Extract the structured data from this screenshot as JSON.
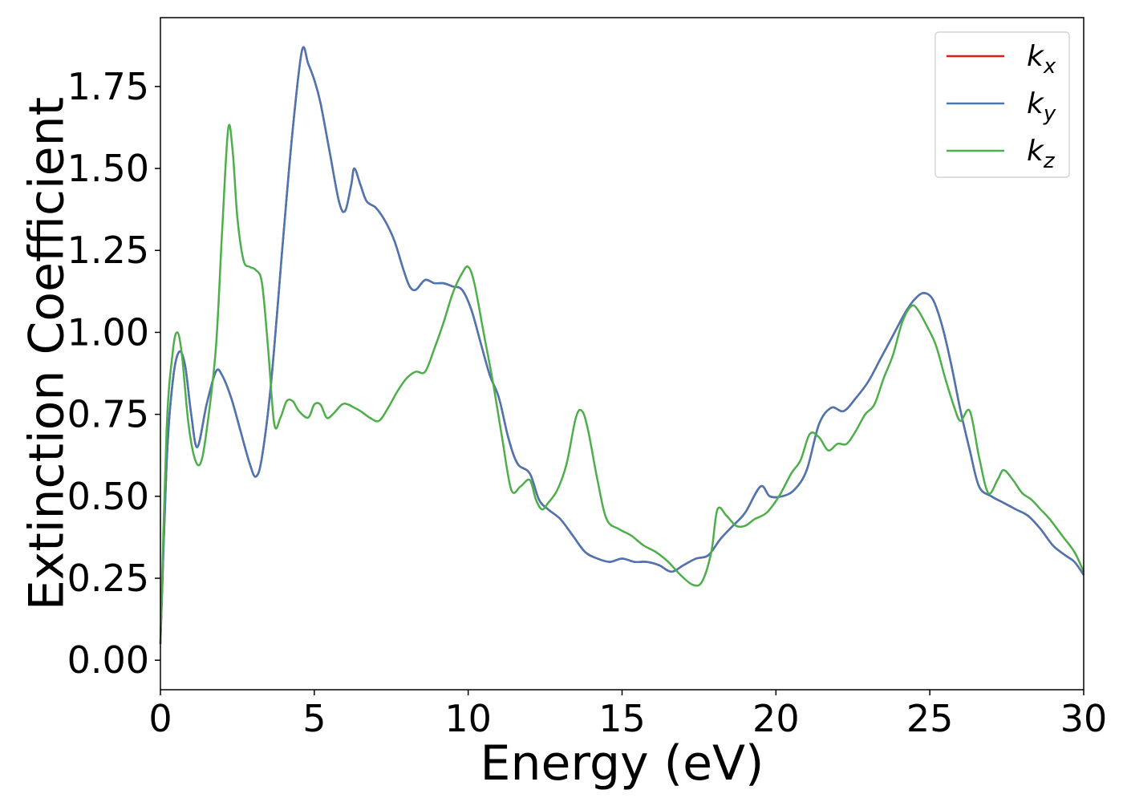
{
  "chart_data": {
    "type": "line",
    "xlabel": "Energy (eV)",
    "ylabel": "Extinction Coefficient",
    "xlim": [
      0,
      30
    ],
    "ylim": [
      -0.09,
      1.96
    ],
    "xticks": [
      0,
      5,
      10,
      15,
      20,
      25,
      30
    ],
    "xtick_labels": [
      "0",
      "5",
      "10",
      "15",
      "20",
      "25",
      "30"
    ],
    "yticks": [
      0.0,
      0.25,
      0.5,
      0.75,
      1.0,
      1.25,
      1.5,
      1.75
    ],
    "ytick_labels": [
      "0.00",
      "0.25",
      "0.50",
      "0.75",
      "1.00",
      "1.25",
      "1.50",
      "1.75"
    ],
    "grid": false,
    "legend_position": "top-right",
    "series": [
      {
        "name": "k_x",
        "legend_base": "k",
        "legend_sub": "x",
        "color": "#e41a1c",
        "x": [
          0,
          0.2,
          0.4,
          0.6,
          0.8,
          1.0,
          1.2,
          1.5,
          1.8,
          2.0,
          2.3,
          2.6,
          2.9,
          3.1,
          3.3,
          3.6,
          4.0,
          4.3,
          4.6,
          4.8,
          5.0,
          5.2,
          5.5,
          5.8,
          6.0,
          6.2,
          6.3,
          6.5,
          6.7,
          7.0,
          7.3,
          7.6,
          7.9,
          8.1,
          8.3,
          8.6,
          8.9,
          9.2,
          9.5,
          9.8,
          10.1,
          10.4,
          10.7,
          11.0,
          11.3,
          11.6,
          12.0,
          12.3,
          12.6,
          13.0,
          13.4,
          13.8,
          14.2,
          14.6,
          15.0,
          15.4,
          15.8,
          16.2,
          16.6,
          17.0,
          17.4,
          17.8,
          18.2,
          18.6,
          19.0,
          19.5,
          19.8,
          20.2,
          20.6,
          21.0,
          21.4,
          21.8,
          22.2,
          22.6,
          23.0,
          23.4,
          23.8,
          24.2,
          24.5,
          24.8,
          25.1,
          25.4,
          25.7,
          26.0,
          26.3,
          26.6,
          27.0,
          27.4,
          27.8,
          28.2,
          28.6,
          29.0,
          29.4,
          29.7,
          30.0
        ],
        "y": [
          0.05,
          0.6,
          0.85,
          0.94,
          0.9,
          0.75,
          0.65,
          0.78,
          0.88,
          0.87,
          0.8,
          0.7,
          0.6,
          0.56,
          0.62,
          0.85,
          1.3,
          1.62,
          1.86,
          1.82,
          1.77,
          1.7,
          1.55,
          1.4,
          1.37,
          1.45,
          1.5,
          1.45,
          1.4,
          1.38,
          1.34,
          1.28,
          1.19,
          1.14,
          1.13,
          1.16,
          1.15,
          1.15,
          1.14,
          1.13,
          1.07,
          0.97,
          0.87,
          0.8,
          0.68,
          0.6,
          0.57,
          0.49,
          0.46,
          0.43,
          0.38,
          0.33,
          0.31,
          0.3,
          0.31,
          0.3,
          0.3,
          0.29,
          0.27,
          0.29,
          0.31,
          0.32,
          0.37,
          0.41,
          0.45,
          0.53,
          0.5,
          0.5,
          0.52,
          0.58,
          0.72,
          0.77,
          0.76,
          0.8,
          0.85,
          0.92,
          0.99,
          1.06,
          1.1,
          1.12,
          1.1,
          1.02,
          0.9,
          0.76,
          0.64,
          0.53,
          0.5,
          0.48,
          0.46,
          0.44,
          0.4,
          0.35,
          0.32,
          0.3,
          0.26
        ]
      },
      {
        "name": "k_y",
        "legend_base": "k",
        "legend_sub": "y",
        "color": "#4a76b3",
        "x": [
          0,
          0.2,
          0.4,
          0.6,
          0.8,
          1.0,
          1.2,
          1.5,
          1.8,
          2.0,
          2.3,
          2.6,
          2.9,
          3.1,
          3.3,
          3.6,
          4.0,
          4.3,
          4.6,
          4.8,
          5.0,
          5.2,
          5.5,
          5.8,
          6.0,
          6.2,
          6.3,
          6.5,
          6.7,
          7.0,
          7.3,
          7.6,
          7.9,
          8.1,
          8.3,
          8.6,
          8.9,
          9.2,
          9.5,
          9.8,
          10.1,
          10.4,
          10.7,
          11.0,
          11.3,
          11.6,
          12.0,
          12.3,
          12.6,
          13.0,
          13.4,
          13.8,
          14.2,
          14.6,
          15.0,
          15.4,
          15.8,
          16.2,
          16.6,
          17.0,
          17.4,
          17.8,
          18.2,
          18.6,
          19.0,
          19.5,
          19.8,
          20.2,
          20.6,
          21.0,
          21.4,
          21.8,
          22.2,
          22.6,
          23.0,
          23.4,
          23.8,
          24.2,
          24.5,
          24.8,
          25.1,
          25.4,
          25.7,
          26.0,
          26.3,
          26.6,
          27.0,
          27.4,
          27.8,
          28.2,
          28.6,
          29.0,
          29.4,
          29.7,
          30.0
        ],
        "y": [
          0.05,
          0.6,
          0.85,
          0.94,
          0.9,
          0.75,
          0.65,
          0.78,
          0.88,
          0.87,
          0.8,
          0.7,
          0.6,
          0.56,
          0.62,
          0.85,
          1.3,
          1.62,
          1.86,
          1.82,
          1.77,
          1.7,
          1.55,
          1.4,
          1.37,
          1.45,
          1.5,
          1.45,
          1.4,
          1.38,
          1.34,
          1.28,
          1.19,
          1.14,
          1.13,
          1.16,
          1.15,
          1.15,
          1.14,
          1.13,
          1.07,
          0.97,
          0.87,
          0.8,
          0.68,
          0.6,
          0.57,
          0.49,
          0.46,
          0.43,
          0.38,
          0.33,
          0.31,
          0.3,
          0.31,
          0.3,
          0.3,
          0.29,
          0.27,
          0.29,
          0.31,
          0.32,
          0.37,
          0.41,
          0.45,
          0.53,
          0.5,
          0.5,
          0.52,
          0.58,
          0.72,
          0.77,
          0.76,
          0.8,
          0.85,
          0.92,
          0.99,
          1.06,
          1.1,
          1.12,
          1.1,
          1.02,
          0.9,
          0.76,
          0.64,
          0.53,
          0.5,
          0.48,
          0.46,
          0.44,
          0.4,
          0.35,
          0.32,
          0.3,
          0.26
        ]
      },
      {
        "name": "k_z",
        "legend_base": "k",
        "legend_sub": "z",
        "color": "#4daf4a",
        "x": [
          0,
          0.2,
          0.4,
          0.55,
          0.7,
          0.9,
          1.1,
          1.3,
          1.5,
          1.8,
          2.0,
          2.2,
          2.35,
          2.5,
          2.7,
          2.9,
          3.1,
          3.3,
          3.5,
          3.7,
          3.9,
          4.1,
          4.3,
          4.5,
          4.8,
          5.0,
          5.2,
          5.4,
          5.6,
          5.9,
          6.1,
          6.3,
          6.5,
          6.8,
          7.1,
          7.4,
          7.7,
          8.0,
          8.3,
          8.6,
          8.9,
          9.2,
          9.5,
          9.8,
          10.0,
          10.2,
          10.5,
          10.8,
          11.1,
          11.4,
          11.7,
          12.0,
          12.2,
          12.4,
          12.6,
          12.9,
          13.2,
          13.5,
          13.7,
          13.9,
          14.2,
          14.5,
          14.9,
          15.3,
          15.7,
          16.1,
          16.5,
          16.9,
          17.3,
          17.6,
          17.9,
          18.1,
          18.4,
          18.7,
          19.0,
          19.3,
          19.7,
          20.1,
          20.5,
          20.8,
          21.1,
          21.4,
          21.7,
          22.0,
          22.3,
          22.6,
          22.9,
          23.2,
          23.5,
          23.8,
          24.1,
          24.4,
          24.6,
          24.9,
          25.2,
          25.5,
          25.8,
          26.0,
          26.3,
          26.6,
          26.9,
          27.2,
          27.4,
          27.7,
          28.0,
          28.3,
          28.6,
          28.9,
          29.3,
          29.7,
          30.0
        ],
        "y": [
          0.05,
          0.7,
          0.94,
          1.0,
          0.93,
          0.73,
          0.62,
          0.6,
          0.7,
          0.95,
          1.3,
          1.62,
          1.55,
          1.35,
          1.22,
          1.2,
          1.19,
          1.15,
          0.95,
          0.72,
          0.74,
          0.79,
          0.79,
          0.76,
          0.74,
          0.78,
          0.78,
          0.74,
          0.75,
          0.78,
          0.78,
          0.77,
          0.76,
          0.74,
          0.73,
          0.77,
          0.82,
          0.86,
          0.88,
          0.88,
          0.95,
          1.03,
          1.12,
          1.18,
          1.2,
          1.15,
          1.0,
          0.85,
          0.68,
          0.52,
          0.53,
          0.55,
          0.49,
          0.46,
          0.48,
          0.52,
          0.6,
          0.74,
          0.76,
          0.7,
          0.55,
          0.43,
          0.4,
          0.38,
          0.35,
          0.33,
          0.3,
          0.26,
          0.23,
          0.24,
          0.33,
          0.46,
          0.44,
          0.41,
          0.41,
          0.43,
          0.45,
          0.5,
          0.57,
          0.61,
          0.69,
          0.68,
          0.64,
          0.66,
          0.66,
          0.7,
          0.75,
          0.78,
          0.86,
          0.93,
          1.03,
          1.08,
          1.07,
          1.02,
          0.96,
          0.86,
          0.77,
          0.73,
          0.76,
          0.62,
          0.51,
          0.55,
          0.58,
          0.55,
          0.51,
          0.49,
          0.46,
          0.43,
          0.38,
          0.33,
          0.27
        ]
      }
    ]
  }
}
